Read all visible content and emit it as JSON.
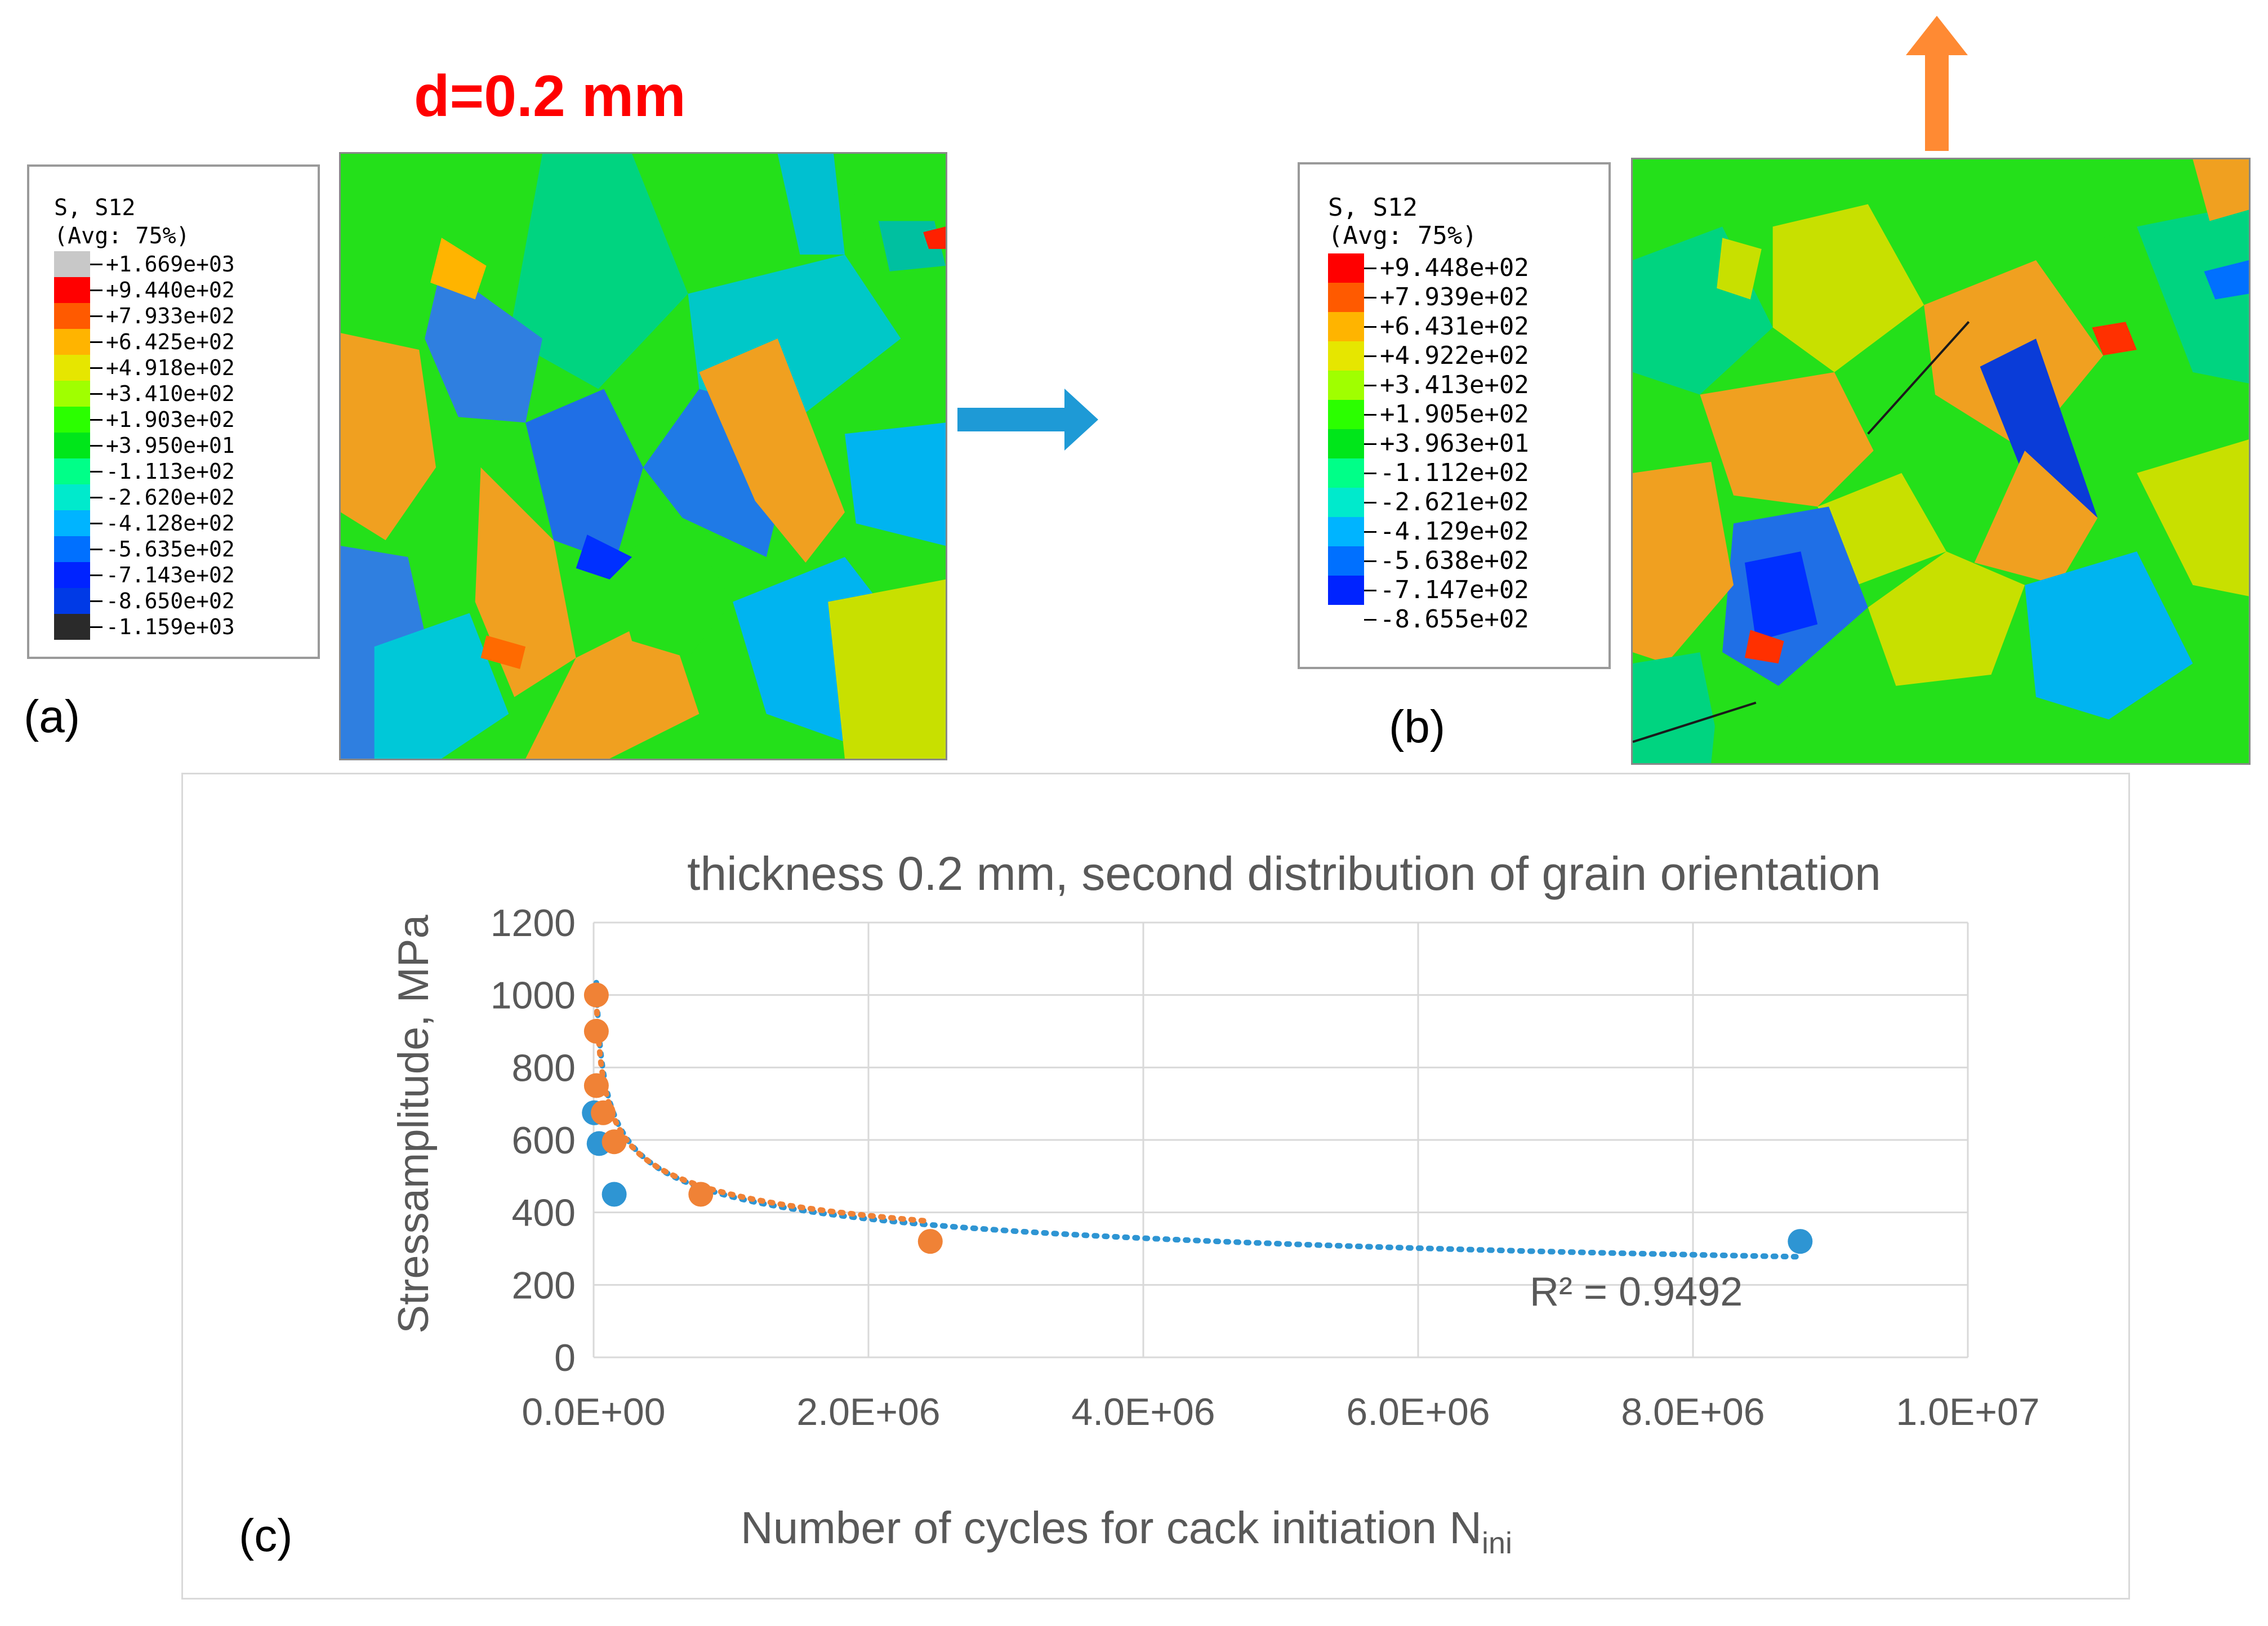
{
  "header": {
    "title": "d=0.2 mm",
    "title_color": "#ff0000"
  },
  "panel_a": {
    "label": "(a)",
    "legend": {
      "title_line1": "S, S12",
      "title_line2": "(Avg: 75%)",
      "values": [
        "+1.669e+03",
        "+9.440e+02",
        "+7.933e+02",
        "+6.425e+02",
        "+4.918e+02",
        "+3.410e+02",
        "+1.903e+02",
        "+3.950e+01",
        "-1.113e+02",
        "-2.620e+02",
        "-4.128e+02",
        "-5.635e+02",
        "-7.143e+02",
        "-8.650e+02",
        "-1.159e+03"
      ],
      "colors": [
        "#c8c8c8",
        "#ff0000",
        "#ff5a00",
        "#ffb400",
        "#e6e600",
        "#a0ff00",
        "#2bff00",
        "#00e61a",
        "#00ff88",
        "#00eacc",
        "#00b4ff",
        "#0070ff",
        "#0023ff",
        "#003ae6",
        "#2a2a2a"
      ]
    }
  },
  "panel_b": {
    "label": "(b)",
    "legend": {
      "title_line1": "S, S12",
      "title_line2": "(Avg: 75%)",
      "values": [
        "+9.448e+02",
        "+7.939e+02",
        "+6.431e+02",
        "+4.922e+02",
        "+3.413e+02",
        "+1.905e+02",
        "+3.963e+01",
        "-1.112e+02",
        "-2.621e+02",
        "-4.129e+02",
        "-5.638e+02",
        "-7.147e+02",
        "-8.655e+02"
      ],
      "colors": [
        "#ff0000",
        "#ff5a00",
        "#ffb400",
        "#e6e600",
        "#a0ff00",
        "#2bff00",
        "#00e61a",
        "#00ff88",
        "#00eacc",
        "#00b4ff",
        "#0070ff",
        "#0023ff"
      ]
    }
  },
  "arrows": {
    "right_color": "#1e9ad6",
    "up_color": "#ff8a33"
  },
  "panel_c": {
    "label": "(c)"
  },
  "chart_data": {
    "type": "scatter",
    "title": "thickness 0.2 mm, second distribution of grain orientation",
    "xlabel_main": "Number of cycles for cack initiation N",
    "xlabel_sub": "ini",
    "ylabel": "Stressamplitude, MPa",
    "xlim": [
      0,
      10000000
    ],
    "ylim": [
      0,
      1200
    ],
    "x_ticks": [
      0,
      2000000,
      4000000,
      6000000,
      8000000,
      10000000
    ],
    "x_tick_labels": [
      "0.0E+00",
      "2.0E+06",
      "4.0E+06",
      "6.0E+06",
      "8.0E+06",
      "1.0E+07"
    ],
    "y_ticks": [
      0,
      200,
      400,
      600,
      800,
      1000,
      1200
    ],
    "y_tick_labels": [
      "0",
      "200",
      "400",
      "600",
      "800",
      "1000",
      "1200"
    ],
    "grid": true,
    "series": [
      {
        "name": "blue",
        "color": "#2e95d3",
        "x": [
          5000,
          40000,
          150000,
          8780000
        ],
        "y": [
          675,
          590,
          450,
          320
        ]
      },
      {
        "name": "orange",
        "color": "#f08236",
        "x": [
          20000,
          20000,
          20000,
          70000,
          150000,
          780000,
          2450000
        ],
        "y": [
          1000,
          900,
          750,
          675,
          595,
          450,
          320
        ]
      }
    ],
    "trendline_blue": {
      "a": 8800,
      "b": -0.2162
    },
    "trendline_orange": {
      "a": 7300,
      "b": -0.2017
    },
    "annotation": "R² = 0.9492"
  }
}
